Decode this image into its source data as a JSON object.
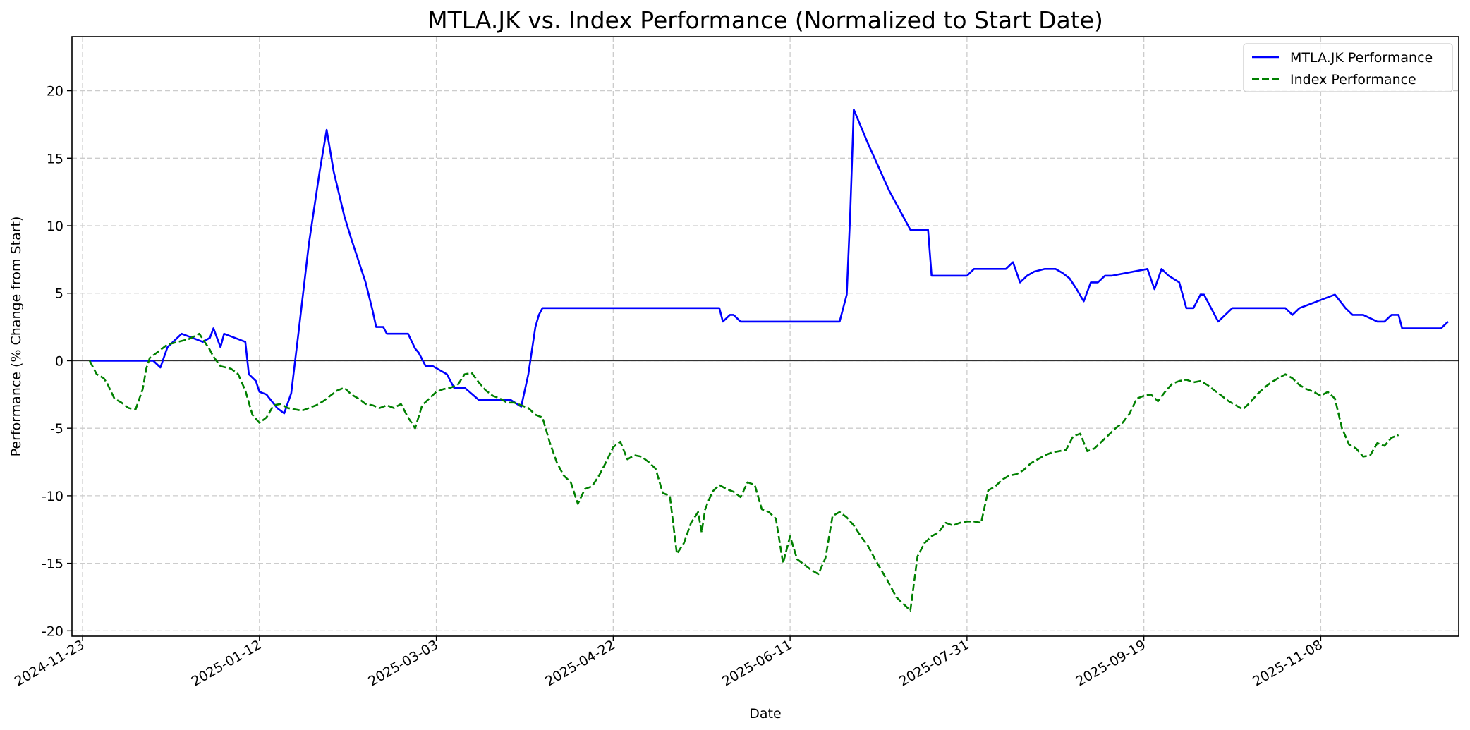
{
  "chart_data": {
    "type": "line",
    "title": "MTLA.JK vs. Index Performance (Normalized to Start Date)",
    "xlabel": "Date",
    "ylabel": "Performance (% Change from Start)",
    "x_tick_labels": [
      "2024-11-23",
      "2025-01-12",
      "2025-03-03",
      "2025-04-22",
      "2025-06-11",
      "2025-07-31",
      "2025-09-19",
      "2025-11-08"
    ],
    "xlim": [
      -3,
      389
    ],
    "ylim": [
      -20.4,
      24
    ],
    "y_ticks": [
      -20,
      -15,
      -10,
      -5,
      0,
      5,
      10,
      15,
      20
    ],
    "grid": true,
    "legend_position": "top-right",
    "reference_line": 0,
    "colors": {
      "mtla": "#0000ff",
      "index": "#008000",
      "grid": "#cccccc",
      "zero_line": "#333333"
    },
    "series": [
      {
        "name": "MTLA.JK Performance",
        "style": "solid",
        "points": [
          [
            2,
            0
          ],
          [
            7,
            0
          ],
          [
            9,
            0
          ],
          [
            12,
            0
          ],
          [
            14,
            0
          ],
          [
            16,
            0
          ],
          [
            20,
            0
          ],
          [
            22,
            -0.5
          ],
          [
            24,
            1
          ],
          [
            28,
            2
          ],
          [
            31,
            1.7
          ],
          [
            34,
            1.4
          ],
          [
            36,
            1.7
          ],
          [
            37,
            2.4
          ],
          [
            39,
            1
          ],
          [
            40,
            2
          ],
          [
            44,
            1.6
          ],
          [
            46,
            1.4
          ],
          [
            47,
            -1
          ],
          [
            49,
            -1.5
          ],
          [
            50,
            -2.3
          ],
          [
            52,
            -2.5
          ],
          [
            55,
            -3.5
          ],
          [
            57,
            -3.9
          ],
          [
            59,
            -2.4
          ],
          [
            61,
            2
          ],
          [
            64,
            8.7
          ],
          [
            67,
            14
          ],
          [
            69,
            17.1
          ],
          [
            71,
            14
          ],
          [
            74,
            10.7
          ],
          [
            76,
            9
          ],
          [
            80,
            5.8
          ],
          [
            82,
            3.7
          ],
          [
            83,
            2.5
          ],
          [
            85,
            2.5
          ],
          [
            86,
            2
          ],
          [
            88,
            2
          ],
          [
            90,
            2
          ],
          [
            92,
            2
          ],
          [
            94,
            0.9
          ],
          [
            95,
            0.6
          ],
          [
            97,
            -0.4
          ],
          [
            99,
            -0.4
          ],
          [
            101,
            -0.7
          ],
          [
            103,
            -1
          ],
          [
            104,
            -1.5
          ],
          [
            105,
            -2
          ],
          [
            108,
            -2
          ],
          [
            112,
            -2.9
          ],
          [
            114,
            -2.9
          ],
          [
            118,
            -2.9
          ],
          [
            121,
            -2.9
          ],
          [
            124,
            -3.4
          ],
          [
            126,
            -1
          ],
          [
            128,
            2.5
          ],
          [
            129,
            3.4
          ],
          [
            130,
            3.9
          ],
          [
            134,
            3.9
          ],
          [
            144,
            3.9
          ],
          [
            160,
            3.9
          ],
          [
            170,
            3.9
          ],
          [
            177,
            3.9
          ],
          [
            180,
            3.9
          ],
          [
            181,
            2.9
          ],
          [
            183,
            3.4
          ],
          [
            184,
            3.4
          ],
          [
            186,
            2.9
          ],
          [
            190,
            2.9
          ],
          [
            200,
            2.9
          ],
          [
            210,
            2.9
          ],
          [
            214,
            2.9
          ],
          [
            216,
            4.9
          ],
          [
            217,
            11
          ],
          [
            218,
            18.6
          ],
          [
            222,
            16.1
          ],
          [
            228,
            12.6
          ],
          [
            234,
            9.7
          ],
          [
            237,
            9.7
          ],
          [
            239,
            9.7
          ],
          [
            240,
            6.3
          ],
          [
            243,
            6.3
          ],
          [
            246,
            6.3
          ],
          [
            250,
            6.3
          ],
          [
            252,
            6.8
          ],
          [
            256,
            6.8
          ],
          [
            258,
            6.8
          ],
          [
            261,
            6.8
          ],
          [
            263,
            7.3
          ],
          [
            265,
            5.8
          ],
          [
            267,
            6.3
          ],
          [
            269,
            6.6
          ],
          [
            272,
            6.8
          ],
          [
            275,
            6.8
          ],
          [
            277,
            6.5
          ],
          [
            279,
            6.1
          ],
          [
            281,
            5.3
          ],
          [
            283,
            4.4
          ],
          [
            285,
            5.8
          ],
          [
            287,
            5.8
          ],
          [
            289,
            6.3
          ],
          [
            291,
            6.3
          ],
          [
            301,
            6.8
          ],
          [
            303,
            5.3
          ],
          [
            305,
            6.8
          ],
          [
            307,
            6.3
          ],
          [
            310,
            5.8
          ],
          [
            312,
            3.9
          ],
          [
            313,
            3.9
          ],
          [
            314,
            3.9
          ],
          [
            316,
            4.9
          ],
          [
            317,
            4.9
          ],
          [
            318,
            4.4
          ],
          [
            321,
            2.9
          ],
          [
            325,
            3.9
          ],
          [
            327,
            3.9
          ],
          [
            336,
            3.9
          ],
          [
            340,
            3.9
          ],
          [
            342,
            3.4
          ],
          [
            344,
            3.9
          ],
          [
            347,
            4.2
          ],
          [
            350,
            4.5
          ],
          [
            354,
            4.9
          ],
          [
            357,
            3.9
          ],
          [
            359,
            3.4
          ],
          [
            362,
            3.4
          ],
          [
            366,
            2.9
          ],
          [
            368,
            2.9
          ],
          [
            370,
            3.4
          ],
          [
            372,
            3.4
          ],
          [
            373,
            2.4
          ],
          [
            382,
            2.4
          ],
          [
            384,
            2.4
          ],
          [
            386,
            2.9
          ]
        ]
      },
      {
        "name": "Index Performance",
        "style": "dashed",
        "points": [
          [
            2,
            0
          ],
          [
            4,
            -1
          ],
          [
            6,
            -1.3
          ],
          [
            7,
            -1.7
          ],
          [
            9,
            -2.8
          ],
          [
            11,
            -3.1
          ],
          [
            13,
            -3.5
          ],
          [
            15,
            -3.6
          ],
          [
            17,
            -2.1
          ],
          [
            18,
            -0.6
          ],
          [
            19,
            0.2
          ],
          [
            21,
            0.6
          ],
          [
            24,
            1.2
          ],
          [
            27,
            1.4
          ],
          [
            30,
            1.6
          ],
          [
            33,
            2
          ],
          [
            36,
            0.8
          ],
          [
            37,
            0.3
          ],
          [
            39,
            -0.4
          ],
          [
            42,
            -0.6
          ],
          [
            44,
            -1
          ],
          [
            46,
            -2.2
          ],
          [
            48,
            -4
          ],
          [
            50,
            -4.6
          ],
          [
            52,
            -4.2
          ],
          [
            54,
            -3.3
          ],
          [
            56,
            -3.2
          ],
          [
            58,
            -3.5
          ],
          [
            60,
            -3.6
          ],
          [
            62,
            -3.7
          ],
          [
            64,
            -3.5
          ],
          [
            66,
            -3.3
          ],
          [
            68,
            -3
          ],
          [
            70,
            -2.6
          ],
          [
            72,
            -2.2
          ],
          [
            74,
            -2
          ],
          [
            76,
            -2.5
          ],
          [
            78,
            -2.8
          ],
          [
            80,
            -3.2
          ],
          [
            82,
            -3.3
          ],
          [
            84,
            -3.5
          ],
          [
            86,
            -3.3
          ],
          [
            88,
            -3.5
          ],
          [
            90,
            -3.2
          ],
          [
            92,
            -4.2
          ],
          [
            94,
            -5
          ],
          [
            96,
            -3.3
          ],
          [
            98,
            -2.8
          ],
          [
            100,
            -2.3
          ],
          [
            102,
            -2.1
          ],
          [
            104,
            -2
          ],
          [
            106,
            -1.8
          ],
          [
            108,
            -1
          ],
          [
            110,
            -0.9
          ],
          [
            112,
            -1.6
          ],
          [
            114,
            -2.2
          ],
          [
            116,
            -2.6
          ],
          [
            118,
            -2.8
          ],
          [
            120,
            -3.1
          ],
          [
            122,
            -3.1
          ],
          [
            124,
            -3.3
          ],
          [
            126,
            -3.5
          ],
          [
            128,
            -4
          ],
          [
            130,
            -4.2
          ],
          [
            132,
            -6
          ],
          [
            134,
            -7.5
          ],
          [
            136,
            -8.5
          ],
          [
            138,
            -9
          ],
          [
            140,
            -10.6
          ],
          [
            142,
            -9.5
          ],
          [
            144,
            -9.3
          ],
          [
            146,
            -8.5
          ],
          [
            148,
            -7.5
          ],
          [
            150,
            -6.4
          ],
          [
            152,
            -6
          ],
          [
            154,
            -7.3
          ],
          [
            156,
            -7
          ],
          [
            158,
            -7.1
          ],
          [
            160,
            -7.5
          ],
          [
            162,
            -8
          ],
          [
            164,
            -9.8
          ],
          [
            166,
            -10
          ],
          [
            168,
            -14.3
          ],
          [
            170,
            -13.5
          ],
          [
            172,
            -12
          ],
          [
            174,
            -11.2
          ],
          [
            175,
            -12.7
          ],
          [
            176,
            -11
          ],
          [
            178,
            -9.7
          ],
          [
            180,
            -9.2
          ],
          [
            182,
            -9.5
          ],
          [
            184,
            -9.7
          ],
          [
            186,
            -10.1
          ],
          [
            188,
            -9
          ],
          [
            190,
            -9.2
          ],
          [
            192,
            -11
          ],
          [
            194,
            -11.2
          ],
          [
            196,
            -11.7
          ],
          [
            198,
            -15
          ],
          [
            200,
            -13
          ],
          [
            202,
            -14.7
          ],
          [
            204,
            -15.1
          ],
          [
            206,
            -15.5
          ],
          [
            208,
            -15.8
          ],
          [
            210,
            -14.6
          ],
          [
            212,
            -11.5
          ],
          [
            214,
            -11.2
          ],
          [
            216,
            -11.6
          ],
          [
            218,
            -12.2
          ],
          [
            220,
            -13
          ],
          [
            222,
            -13.7
          ],
          [
            224,
            -14.7
          ],
          [
            226,
            -15.6
          ],
          [
            228,
            -16.5
          ],
          [
            230,
            -17.5
          ],
          [
            232,
            -18
          ],
          [
            234,
            -18.5
          ],
          [
            236,
            -14.5
          ],
          [
            238,
            -13.5
          ],
          [
            240,
            -13
          ],
          [
            242,
            -12.7
          ],
          [
            244,
            -12
          ],
          [
            246,
            -12.2
          ],
          [
            248,
            -12
          ],
          [
            250,
            -11.9
          ],
          [
            252,
            -11.9
          ],
          [
            254,
            -12
          ],
          [
            256,
            -9.6
          ],
          [
            258,
            -9.3
          ],
          [
            260,
            -8.8
          ],
          [
            262,
            -8.5
          ],
          [
            264,
            -8.4
          ],
          [
            266,
            -8.1
          ],
          [
            268,
            -7.6
          ],
          [
            270,
            -7.3
          ],
          [
            272,
            -7
          ],
          [
            274,
            -6.8
          ],
          [
            276,
            -6.7
          ],
          [
            278,
            -6.6
          ],
          [
            280,
            -5.6
          ],
          [
            282,
            -5.4
          ],
          [
            284,
            -6.7
          ],
          [
            286,
            -6.5
          ],
          [
            288,
            -6
          ],
          [
            290,
            -5.5
          ],
          [
            292,
            -5
          ],
          [
            294,
            -4.6
          ],
          [
            296,
            -3.9
          ],
          [
            298,
            -2.8
          ],
          [
            300,
            -2.6
          ],
          [
            302,
            -2.5
          ],
          [
            304,
            -3
          ],
          [
            306,
            -2.3
          ],
          [
            308,
            -1.7
          ],
          [
            310,
            -1.5
          ],
          [
            312,
            -1.4
          ],
          [
            314,
            -1.6
          ],
          [
            316,
            -1.5
          ],
          [
            318,
            -1.8
          ],
          [
            320,
            -2.2
          ],
          [
            322,
            -2.6
          ],
          [
            324,
            -3
          ],
          [
            326,
            -3.3
          ],
          [
            328,
            -3.6
          ],
          [
            330,
            -3.1
          ],
          [
            332,
            -2.5
          ],
          [
            334,
            -2
          ],
          [
            336,
            -1.6
          ],
          [
            338,
            -1.3
          ],
          [
            340,
            -1
          ],
          [
            342,
            -1.3
          ],
          [
            344,
            -1.8
          ],
          [
            346,
            -2.1
          ],
          [
            348,
            -2.3
          ],
          [
            350,
            -2.6
          ],
          [
            352,
            -2.3
          ],
          [
            354,
            -2.8
          ],
          [
            356,
            -5
          ],
          [
            358,
            -6.2
          ],
          [
            360,
            -6.5
          ],
          [
            362,
            -7.1
          ],
          [
            364,
            -7
          ],
          [
            366,
            -6.1
          ],
          [
            368,
            -6.3
          ],
          [
            370,
            -5.7
          ],
          [
            372,
            -5.5
          ]
        ]
      }
    ]
  }
}
